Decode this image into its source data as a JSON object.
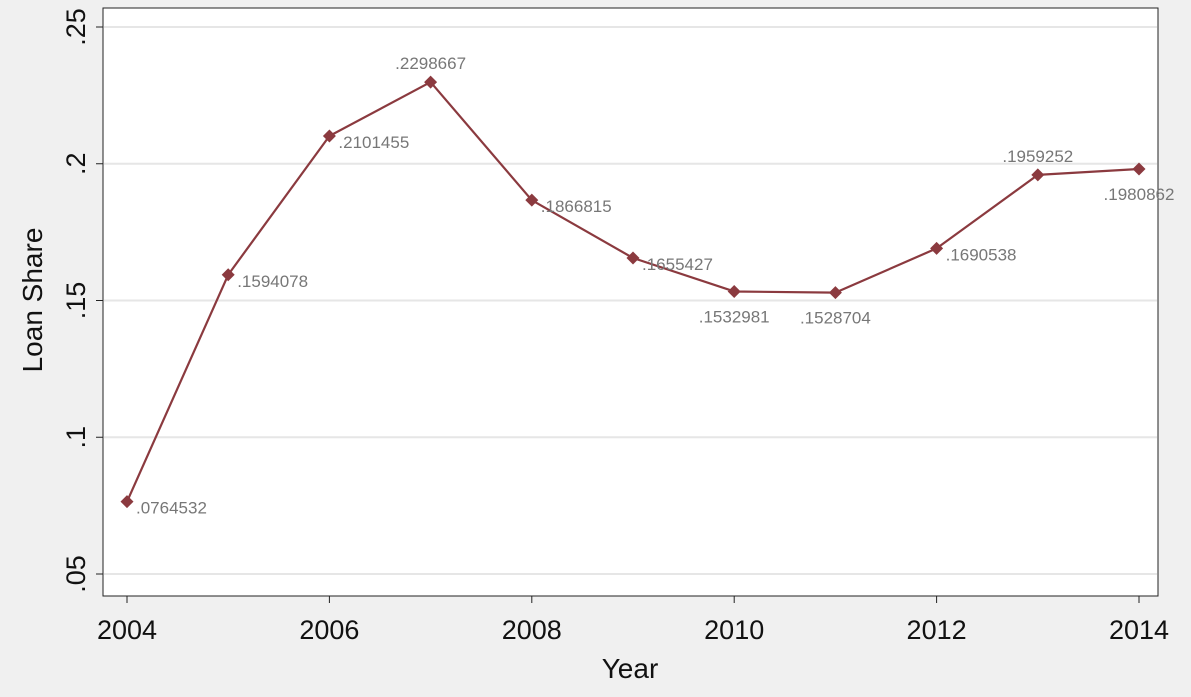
{
  "chart_data": {
    "type": "line",
    "title": "",
    "xlabel": "Year",
    "ylabel": "Loan Share",
    "xlim": [
      2004,
      2014
    ],
    "ylim": [
      0.05,
      0.25
    ],
    "x_ticks": [
      2004,
      2006,
      2008,
      2010,
      2012,
      2014
    ],
    "x_tick_labels": [
      "2004",
      "2006",
      "2008",
      "2010",
      "2012",
      "2014"
    ],
    "y_ticks": [
      0.05,
      0.1,
      0.15,
      0.2,
      0.25
    ],
    "y_tick_labels": [
      ".05",
      ".1",
      ".15",
      ".2",
      ".25"
    ],
    "grid": true,
    "marker": "diamond",
    "series": [
      {
        "color": "#8b3a3f",
        "points": [
          {
            "x": 2004,
            "y": 0.0764532,
            "label": ".0764532",
            "label_pos": "right"
          },
          {
            "x": 2005,
            "y": 0.1594078,
            "label": ".1594078",
            "label_pos": "right"
          },
          {
            "x": 2006,
            "y": 0.2101455,
            "label": ".2101455",
            "label_pos": "right"
          },
          {
            "x": 2007,
            "y": 0.2298667,
            "label": ".2298667",
            "label_pos": "above"
          },
          {
            "x": 2008,
            "y": 0.1866815,
            "label": ".1866815",
            "label_pos": "right"
          },
          {
            "x": 2009,
            "y": 0.1655427,
            "label": ".1655427",
            "label_pos": "right"
          },
          {
            "x": 2010,
            "y": 0.1532981,
            "label": ".1532981",
            "label_pos": "below"
          },
          {
            "x": 2011,
            "y": 0.1528704,
            "label": ".1528704",
            "label_pos": "below"
          },
          {
            "x": 2012,
            "y": 0.1690538,
            "label": ".1690538",
            "label_pos": "right"
          },
          {
            "x": 2013,
            "y": 0.1959252,
            "label": ".1959252",
            "label_pos": "above"
          },
          {
            "x": 2014,
            "y": 0.1980862,
            "label": ".1980862",
            "label_pos": "below"
          }
        ]
      }
    ]
  }
}
